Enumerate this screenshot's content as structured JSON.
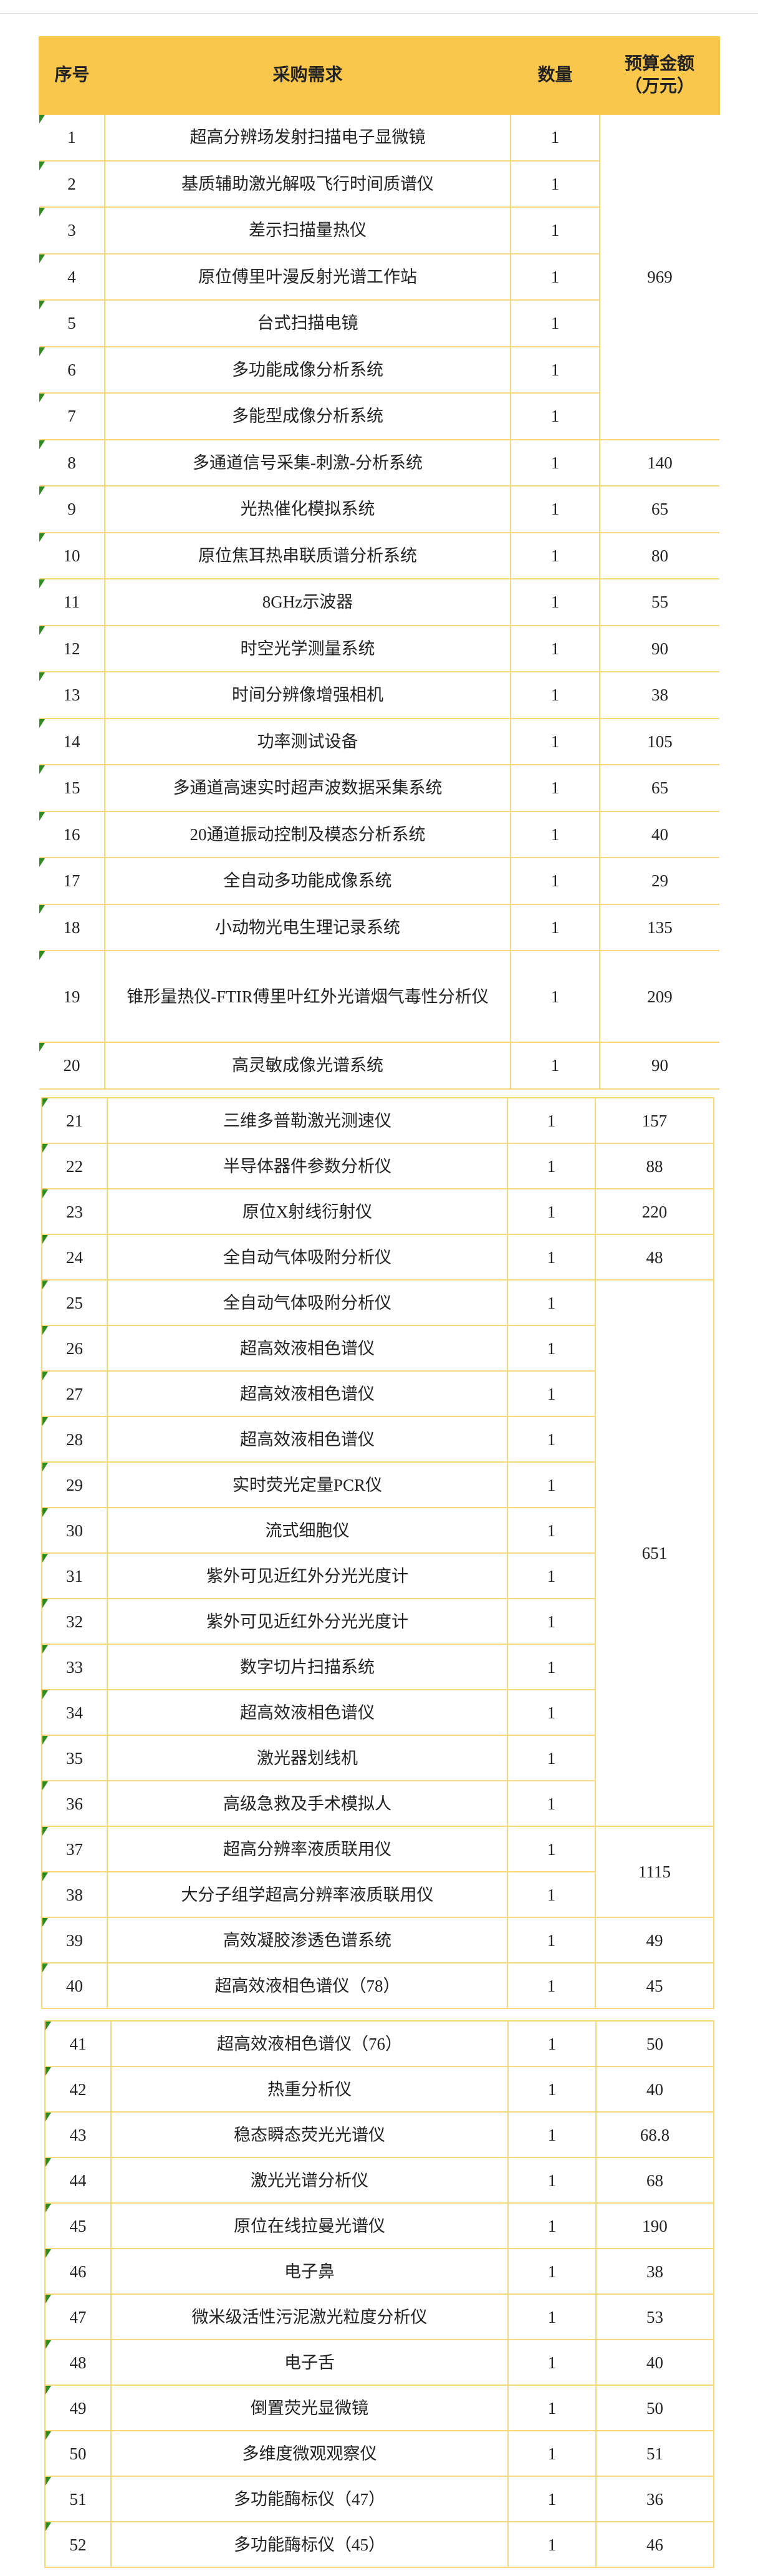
{
  "header": {
    "no": "序号",
    "item": "采购需求",
    "qty": "数量",
    "budget_line1": "预算金额",
    "budget_line2": "（万元）"
  },
  "colors": {
    "header_bg": "#f9c74c",
    "border": "#f6d77a",
    "marker": "#2e8b1e"
  },
  "sections": [
    {
      "rows": [
        {
          "no": "1",
          "item": "超高分辨场发射扫描电子显微镜",
          "qty": "1",
          "budget": "969",
          "rowspan": 7
        },
        {
          "no": "2",
          "item": "基质辅助激光解吸飞行时间质谱仪",
          "qty": "1"
        },
        {
          "no": "3",
          "item": "差示扫描量热仪",
          "qty": "1"
        },
        {
          "no": "4",
          "item": "原位傅里叶漫反射光谱工作站",
          "qty": "1"
        },
        {
          "no": "5",
          "item": "台式扫描电镜",
          "qty": "1"
        },
        {
          "no": "6",
          "item": "多功能成像分析系统",
          "qty": "1"
        },
        {
          "no": "7",
          "item": "多能型成像分析系统",
          "qty": "1"
        },
        {
          "no": "8",
          "item": "多通道信号采集-刺激-分析系统",
          "qty": "1",
          "budget": "140"
        },
        {
          "no": "9",
          "item": "光热催化模拟系统",
          "qty": "1",
          "budget": "65"
        },
        {
          "no": "10",
          "item": "原位焦耳热串联质谱分析系统",
          "qty": "1",
          "budget": "80"
        },
        {
          "no": "11",
          "item": "8GHz示波器",
          "qty": "1",
          "budget": "55"
        },
        {
          "no": "12",
          "item": "时空光学测量系统",
          "qty": "1",
          "budget": "90"
        },
        {
          "no": "13",
          "item": "时间分辨像增强相机",
          "qty": "1",
          "budget": "38"
        },
        {
          "no": "14",
          "item": "功率测试设备",
          "qty": "1",
          "budget": "105"
        },
        {
          "no": "15",
          "item": "多通道高速实时超声波数据采集系统",
          "qty": "1",
          "budget": "65"
        },
        {
          "no": "16",
          "item": "20通道振动控制及模态分析系统",
          "qty": "1",
          "budget": "40"
        },
        {
          "no": "17",
          "item": "全自动多功能成像系统",
          "qty": "1",
          "budget": "29"
        },
        {
          "no": "18",
          "item": "小动物光电生理记录系统",
          "qty": "1",
          "budget": "135"
        },
        {
          "no": "19",
          "item": "锥形量热仪-FTIR傅里叶红外光谱烟气毒性分析仪",
          "qty": "1",
          "budget": "209"
        },
        {
          "no": "20",
          "item": "高灵敏成像光谱系统",
          "qty": "1",
          "budget": "90"
        }
      ]
    },
    {
      "rows": [
        {
          "no": "21",
          "item": "三维多普勒激光测速仪",
          "qty": "1",
          "budget": "157"
        },
        {
          "no": "22",
          "item": "半导体器件参数分析仪",
          "qty": "1",
          "budget": "88"
        },
        {
          "no": "23",
          "item": "原位X射线衍射仪",
          "qty": "1",
          "budget": "220"
        },
        {
          "no": "24",
          "item": "全自动气体吸附分析仪",
          "qty": "1",
          "budget": "48"
        },
        {
          "no": "25",
          "item": "全自动气体吸附分析仪",
          "qty": "1",
          "budget": "651",
          "rowspan": 12
        },
        {
          "no": "26",
          "item": "超高效液相色谱仪",
          "qty": "1"
        },
        {
          "no": "27",
          "item": "超高效液相色谱仪",
          "qty": "1"
        },
        {
          "no": "28",
          "item": "超高效液相色谱仪",
          "qty": "1"
        },
        {
          "no": "29",
          "item": "实时荧光定量PCR仪",
          "qty": "1"
        },
        {
          "no": "30",
          "item": "流式细胞仪",
          "qty": "1"
        },
        {
          "no": "31",
          "item": "紫外可见近红外分光光度计",
          "qty": "1"
        },
        {
          "no": "32",
          "item": "紫外可见近红外分光光度计",
          "qty": "1"
        },
        {
          "no": "33",
          "item": "数字切片扫描系统",
          "qty": "1"
        },
        {
          "no": "34",
          "item": "超高效液相色谱仪",
          "qty": "1"
        },
        {
          "no": "35",
          "item": "激光器划线机",
          "qty": "1"
        },
        {
          "no": "36",
          "item": "高级急救及手术模拟人",
          "qty": "1"
        },
        {
          "no": "37",
          "item": "超高分辨率液质联用仪",
          "qty": "1",
          "budget": "1115",
          "rowspan": 2
        },
        {
          "no": "38",
          "item": "大分子组学超高分辨率液质联用仪",
          "qty": "1"
        },
        {
          "no": "39",
          "item": "高效凝胶渗透色谱系统",
          "qty": "1",
          "budget": "49"
        },
        {
          "no": "40",
          "item": "超高效液相色谱仪（78）",
          "qty": "1",
          "budget": "45"
        }
      ]
    },
    {
      "rows": [
        {
          "no": "41",
          "item": "超高效液相色谱仪（76）",
          "qty": "1",
          "budget": "50"
        },
        {
          "no": "42",
          "item": "热重分析仪",
          "qty": "1",
          "budget": "40"
        },
        {
          "no": "43",
          "item": "稳态瞬态荧光光谱仪",
          "qty": "1",
          "budget": "68.8"
        },
        {
          "no": "44",
          "item": "激光光谱分析仪",
          "qty": "1",
          "budget": "68"
        },
        {
          "no": "45",
          "item": "原位在线拉曼光谱仪",
          "qty": "1",
          "budget": "190"
        },
        {
          "no": "46",
          "item": "电子鼻",
          "qty": "1",
          "budget": "38"
        },
        {
          "no": "47",
          "item": "微米级活性污泥激光粒度分析仪",
          "qty": "1",
          "budget": "53"
        },
        {
          "no": "48",
          "item": "电子舌",
          "qty": "1",
          "budget": "40"
        },
        {
          "no": "49",
          "item": "倒置荧光显微镜",
          "qty": "1",
          "budget": "50"
        },
        {
          "no": "50",
          "item": "多维度微观观察仪",
          "qty": "1",
          "budget": "51"
        },
        {
          "no": "51",
          "item": "多功能酶标仪（47）",
          "qty": "1",
          "budget": "36"
        },
        {
          "no": "52",
          "item": "多功能酶标仪（45）",
          "qty": "1",
          "budget": "46"
        }
      ]
    }
  ]
}
